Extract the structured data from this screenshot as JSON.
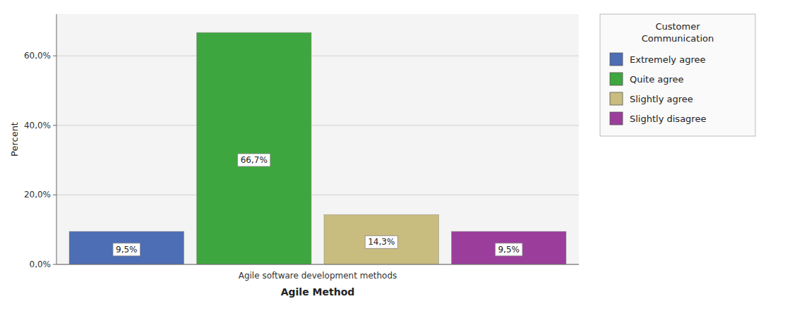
{
  "chart_data": {
    "type": "bar",
    "categories": [
      "Extremely agree",
      "Quite agree",
      "Slightly agree",
      "Slightly disagree"
    ],
    "values": [
      9.5,
      66.7,
      14.3,
      9.5
    ],
    "value_labels": [
      "9,5%",
      "66,7%",
      "14,3%",
      "9,5%"
    ],
    "data_labels": true,
    "colors": [
      "#4d6db5",
      "#3ea63e",
      "#c8bc7e",
      "#9b3d9b"
    ],
    "x_label": "Agile Method",
    "x_tick_label": "Agile software development methods",
    "y_label": "Percent",
    "legend_title": "Customer\nCommunication",
    "legend": "right",
    "ylim": [
      0,
      72
    ],
    "yticks": [
      {
        "value": 0,
        "label": "0,0%"
      },
      {
        "value": 20,
        "label": "20,0%"
      },
      {
        "value": 40,
        "label": "40,0%"
      },
      {
        "value": 60,
        "label": "60,0%"
      }
    ],
    "grid": true
  }
}
